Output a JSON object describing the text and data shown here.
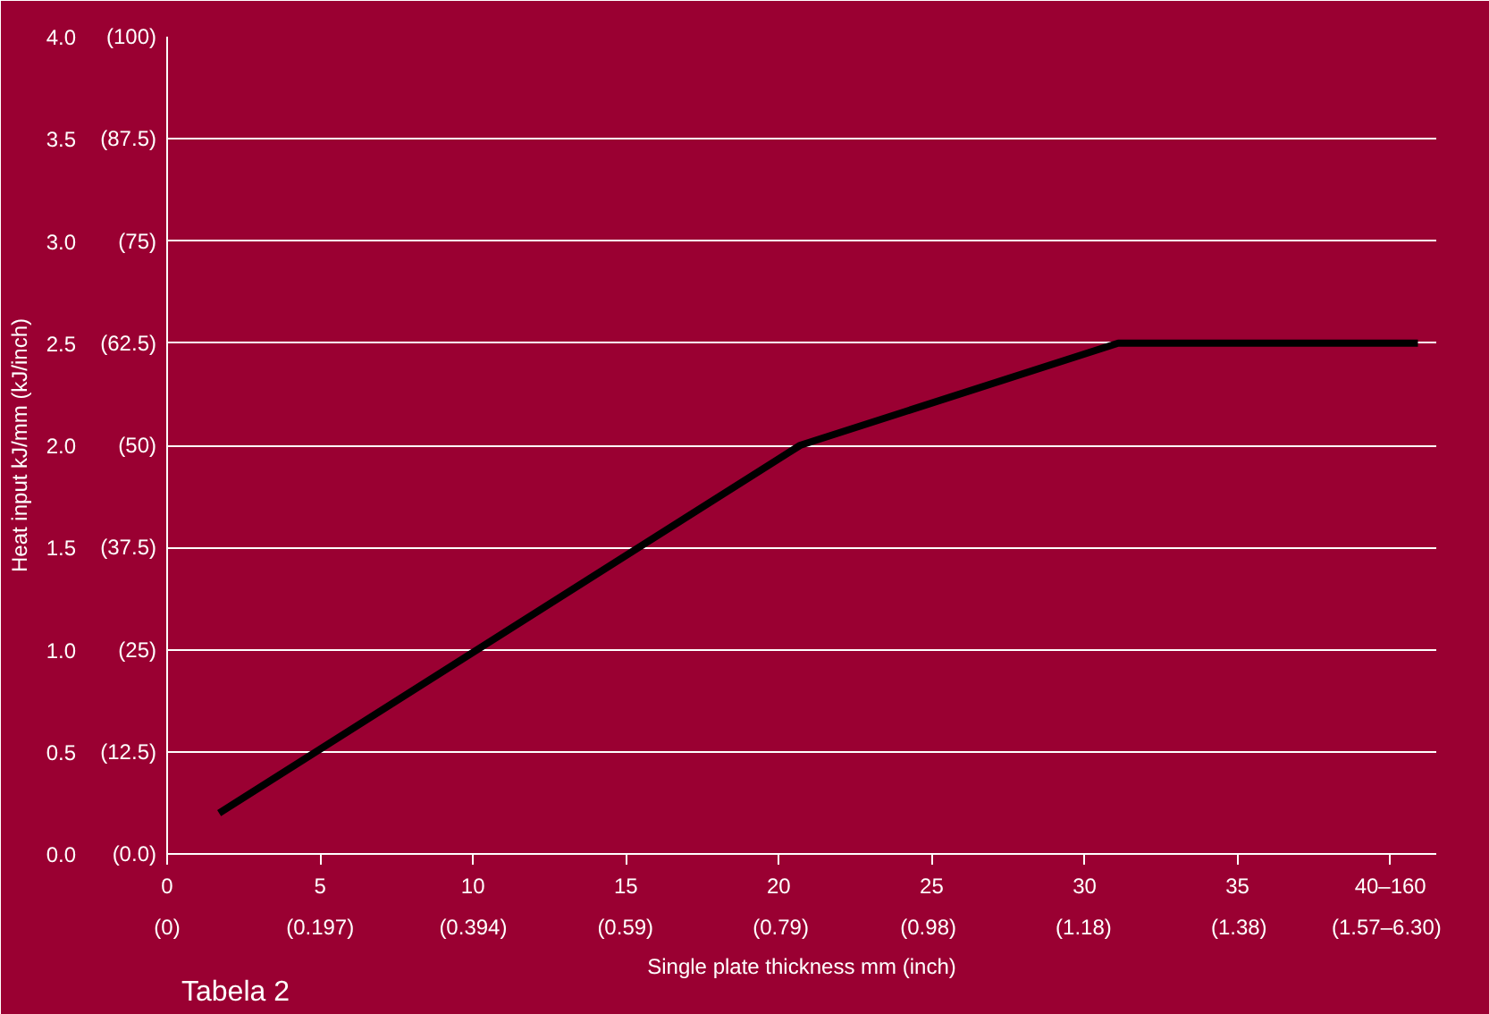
{
  "chart_data": {
    "type": "line",
    "xlabel": "Single plate thickness mm (inch)",
    "ylabel": "Heat input kJ/mm (kJ/inch)",
    "annotations": [
      "Tabela 2"
    ],
    "x": [
      1.7,
      20.7,
      31.1,
      40.9
    ],
    "series": [
      {
        "color": "#000000",
        "values": [
          0.2,
          2.0,
          2.5,
          2.5
        ]
      }
    ],
    "xlim": [
      0,
      41.5
    ],
    "ylim": [
      0,
      4
    ],
    "xticks": [
      {
        "value": 0,
        "label": "0"
      },
      5,
      10,
      15,
      20,
      25,
      30,
      35,
      {
        "value": 40,
        "label": "40–160"
      }
    ],
    "x2lim": [
      0,
      1.634
    ],
    "x2ticks": [
      {
        "value": 0,
        "label": "(0)"
      },
      {
        "value": 0.197,
        "label": "(0.197)"
      },
      {
        "value": 0.394,
        "label": "(0.394)"
      },
      {
        "value": 0.59,
        "label": "(0.59)"
      },
      {
        "value": 0.79,
        "label": "(0.79)"
      },
      {
        "value": 0.98,
        "label": "(0.98)"
      },
      {
        "value": 1.18,
        "label": "(1.18)"
      },
      {
        "value": 1.38,
        "label": "(1.38)"
      },
      {
        "value": 1.57,
        "label": "(1.57–6.30)"
      }
    ],
    "yticks": [
      {
        "value": 0,
        "label": "0.0"
      },
      0.5,
      {
        "value": 1,
        "label": "1.0"
      },
      1.5,
      {
        "value": 2,
        "label": "2.0"
      },
      2.5,
      {
        "value": 3,
        "label": "3.0"
      },
      3.5,
      {
        "value": 4,
        "label": "4.0"
      }
    ],
    "y2lim": [
      0,
      100
    ],
    "y2ticks": [
      {
        "value": 0,
        "label": "(0.0)"
      },
      {
        "value": 12.5,
        "label": "(12.5)"
      },
      {
        "value": 25,
        "label": "(25)"
      },
      {
        "value": 37.5,
        "label": "(37.5)"
      },
      {
        "value": 50,
        "label": "(50)"
      },
      {
        "value": 62.5,
        "label": "(62.5)"
      },
      {
        "value": 75,
        "label": "(75)"
      },
      {
        "value": 87.5,
        "label": "(87.5)"
      },
      {
        "value": 100,
        "label": "(100)"
      }
    ],
    "grid": "y",
    "marker": "none",
    "line_style": "solid"
  }
}
